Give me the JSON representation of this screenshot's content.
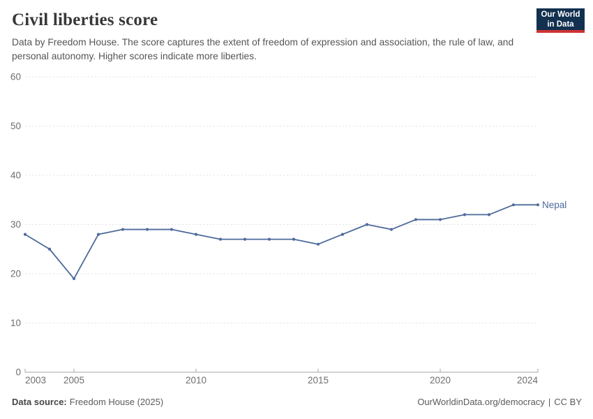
{
  "header": {
    "title": "Civil liberties score",
    "subtitle": "Data by Freedom House. The score captures the extent of freedom of expression and association, the rule of law, and personal autonomy. Higher scores indicate more liberties.",
    "logo": {
      "line1": "Our World",
      "line2": "in Data"
    }
  },
  "chart_data": {
    "type": "line",
    "title": "Civil liberties score",
    "x": [
      2003,
      2004,
      2005,
      2006,
      2007,
      2008,
      2009,
      2010,
      2011,
      2012,
      2013,
      2014,
      2015,
      2016,
      2017,
      2018,
      2019,
      2020,
      2021,
      2022,
      2023,
      2024
    ],
    "series": [
      {
        "name": "Nepal",
        "color": "#4d6a9b",
        "values": [
          28,
          25,
          19,
          28,
          29,
          29,
          29,
          28,
          27,
          27,
          27,
          27,
          26,
          28,
          30,
          29,
          31,
          31,
          32,
          32,
          34,
          34
        ]
      }
    ],
    "xlabel": "",
    "ylabel": "",
    "xlim": [
      2003,
      2024
    ],
    "ylim": [
      0,
      60
    ],
    "y_ticks": [
      0,
      10,
      20,
      30,
      40,
      50,
      60
    ],
    "x_ticks": [
      2003,
      2005,
      2010,
      2015,
      2020,
      2024
    ],
    "grid": "horizontal-dashed",
    "legend": "end-of-line-label"
  },
  "footer": {
    "source_label": "Data source:",
    "source_value": "Freedom House (2025)",
    "link": "OurWorldinData.org/democracy",
    "separator": "|",
    "license": "CC BY"
  },
  "colors": {
    "series_line": "#4d6a9b",
    "gridline": "#e2e2e2",
    "axis_line": "#a5a5a5",
    "tick_label": "#6e6e6e",
    "title_text": "#383838",
    "subtitle_text": "#555555",
    "logo_navy": "#12304f",
    "logo_red": "#cc3333",
    "background": "#ffffff"
  }
}
